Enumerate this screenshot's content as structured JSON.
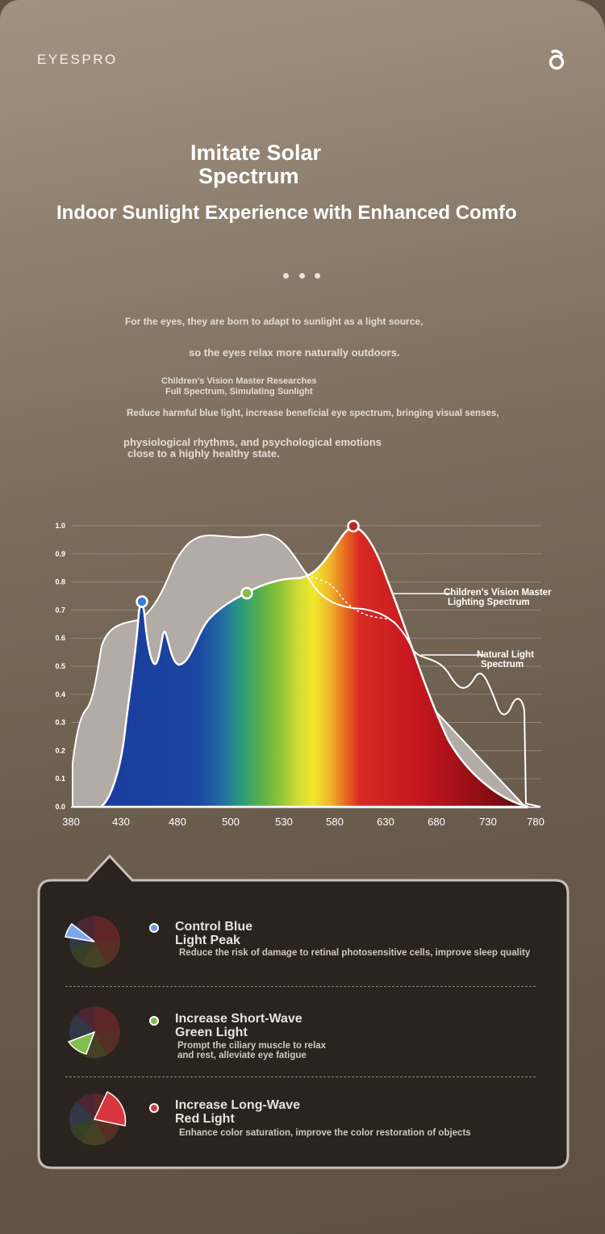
{
  "header": {
    "brand": "EYESPRO",
    "logo_icon": "user-circle-icon"
  },
  "hero": {
    "title_line1": "Imitate Solar",
    "title_line2": "Spectrum",
    "subtitle": "Indoor Sunlight Experience with Enhanced Comfo",
    "pagination_dots": 3
  },
  "intro": {
    "line1": "For the eyes, they are born to adapt to sunlight as a light source,",
    "line2": "so the eyes relax more naturally outdoors.",
    "line3a": "Children's Vision Master Researches",
    "line3b": "Full Spectrum, Simulating Sunlight",
    "line4": "Reduce harmful blue light, increase beneficial eye spectrum, bringing visual senses,",
    "line5a": "physiological rhythms, and psychological emotions",
    "line5b": " close to a highly healthy state."
  },
  "chart_data": {
    "type": "area",
    "x_ticks": [
      "380",
      "430",
      "480",
      "500",
      "530",
      "580",
      "630",
      "680",
      "730",
      "780"
    ],
    "y_ticks": [
      "0.0",
      "0.1",
      "0.2",
      "0.3",
      "0.4",
      "0.5",
      "0.6",
      "0.7",
      "0.8",
      "0.9",
      "1.0"
    ],
    "ylim": [
      0,
      1.0
    ],
    "grid": true,
    "series": [
      {
        "name_line1": "Natural Light",
        "name_line2": "Spectrum",
        "color": "#b1aaa5"
      },
      {
        "name_line1": "Children's Vision Master",
        "name_line2": "Lighting Spectrum",
        "color": "multicolor-spectrum"
      }
    ],
    "markers": [
      {
        "x_tick": "430",
        "value": 0.73,
        "color": "#3b7bd6"
      },
      {
        "x_tick": "500",
        "value": 0.76,
        "color": "#7fbf4a"
      },
      {
        "x_tick": "580",
        "value": 0.99,
        "color": "#c0252b"
      }
    ]
  },
  "features": [
    {
      "title_line1": "Control Blue",
      "title_line2": " Light Peak",
      "desc_line1": "Reduce the risk of damage to retinal photosensitive cells, improve sleep quality",
      "desc_line2": "",
      "color": "#6a9ae6",
      "icon": "blue-slice-wheel-icon"
    },
    {
      "title_line1": "Increase Short-Wave",
      "title_line2": " Green Light",
      "desc_line1": "Prompt the ciliary muscle to relax",
      "desc_line2": " and rest, alleviate eye fatigue",
      "color": "#7fb953",
      "icon": "green-slice-wheel-icon"
    },
    {
      "title_line1": "Increase Long-Wave",
      "title_line2": " Red Light",
      "desc_line1": "Enhance color saturation, improve the color restoration of objects",
      "desc_line2": "",
      "color": "#d6353d",
      "icon": "red-slice-wheel-icon"
    }
  ]
}
